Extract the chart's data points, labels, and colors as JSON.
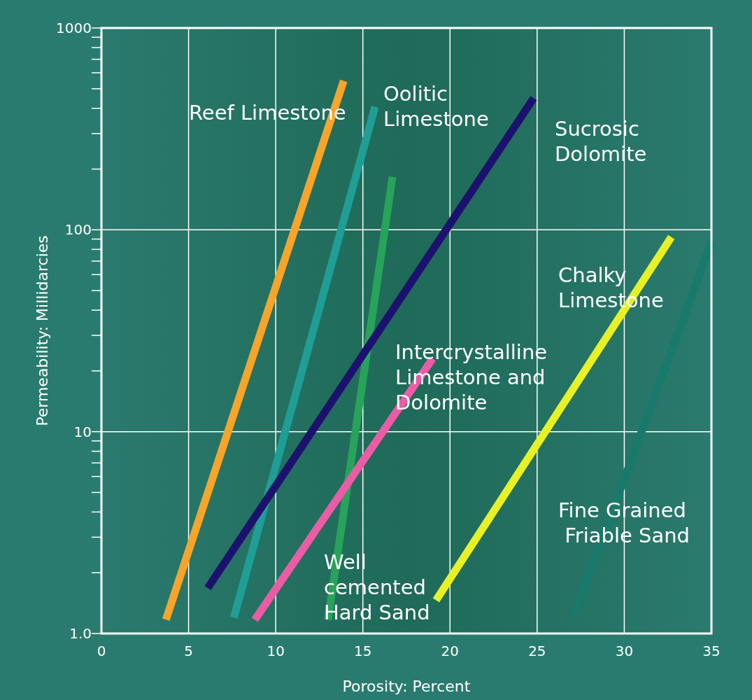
{
  "chart_data": {
    "type": "line",
    "xlabel": "Porosity: Percent",
    "ylabel": "Permeability: Millidarcies",
    "log": true,
    "grid": true,
    "line_style": "solid",
    "xlim": [
      0,
      35
    ],
    "xticks": [
      0,
      5,
      10,
      15,
      20,
      25,
      30,
      35
    ],
    "ylim": [
      1,
      1000
    ],
    "yticks": [
      {
        "value": 1,
        "label": "1.0"
      },
      {
        "value": 2,
        "label": null
      },
      {
        "value": 3,
        "label": null
      },
      {
        "value": 4,
        "label": null
      },
      {
        "value": 5,
        "label": null
      },
      {
        "value": 6,
        "label": null
      },
      {
        "value": 7,
        "label": null
      },
      {
        "value": 8,
        "label": null
      },
      {
        "value": 9,
        "label": null
      },
      10,
      {
        "value": 20,
        "label": null
      },
      {
        "value": 30,
        "label": null
      },
      {
        "value": 40,
        "label": null
      },
      {
        "value": 50,
        "label": null
      },
      {
        "value": 60,
        "label": null
      },
      {
        "value": 70,
        "label": null
      },
      {
        "value": 80,
        "label": null
      },
      {
        "value": 90,
        "label": null
      },
      100,
      {
        "value": 200,
        "label": null
      },
      {
        "value": 300,
        "label": null
      },
      {
        "value": 400,
        "label": null
      },
      {
        "value": 500,
        "label": null
      },
      {
        "value": 600,
        "label": null
      },
      {
        "value": 700,
        "label": null
      },
      {
        "value": 800,
        "label": null
      },
      {
        "value": 900,
        "label": null
      },
      1000
    ],
    "series": [
      {
        "color": "#f7a42a",
        "x": [
          3.7,
          13.9
        ],
        "values": [
          1.17,
          547
        ]
      },
      {
        "color": "#1f9e96",
        "x": [
          7.6,
          15.7
        ],
        "values": [
          1.2,
          407
        ]
      },
      {
        "color": "#28a35a",
        "x": [
          13.0,
          16.7
        ],
        "values": [
          1.17,
          183
        ]
      },
      {
        "color": "#1c116e",
        "x": [
          6.1,
          24.8
        ],
        "values": [
          1.68,
          449
        ]
      },
      {
        "color": "#ec5ba6",
        "x": [
          8.8,
          19.0
        ],
        "values": [
          1.17,
          23
        ]
      },
      {
        "color": "#e8f124",
        "x": [
          19.2,
          32.7
        ],
        "values": [
          1.46,
          92
        ]
      },
      {
        "color": "#177a6a",
        "x": [
          27.1,
          35
        ],
        "values": [
          1.22,
          87
        ]
      }
    ],
    "annotations": [
      "Reef Limestone",
      "Oolitic\nLimestone",
      "Sucrosic\nDolomite",
      "Chalky\nLimestone",
      "Intercrystalline\nLimestone and\nDolomite",
      "Well\ncemented\nHard Sand",
      "Fine Grained\n Friable Sand"
    ]
  }
}
